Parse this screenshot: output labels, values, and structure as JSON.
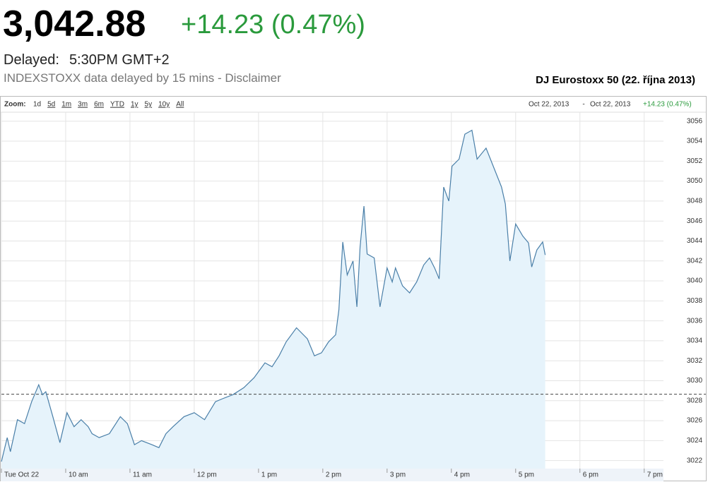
{
  "header": {
    "price": "3,042.88",
    "change": "+14.23 (0.47%)",
    "delayed_label": "Delayed:",
    "delayed_time": "5:30PM GMT+2",
    "disclaimer": "INDEXSTOXX data delayed by 15 mins - Disclaimer"
  },
  "zoom": {
    "label": "Zoom:",
    "ranges": [
      "1d",
      "5d",
      "1m",
      "3m",
      "6m",
      "YTD",
      "1y",
      "5y",
      "10y",
      "All"
    ],
    "from": "Oct 22, 2013",
    "separator": "-",
    "to": "Oct 22, 2013",
    "change": "+14.23 (0.47%)"
  },
  "chart_data": {
    "type": "area",
    "title": "DJ Eurostoxx 50 (22. října 2013)",
    "color": "#4a7fa8",
    "fill": "#e6f3fb",
    "x": [
      9.0,
      9.09,
      9.14,
      9.25,
      9.36,
      9.47,
      9.58,
      9.64,
      9.69,
      9.8,
      9.91,
      10.02,
      10.13,
      10.24,
      10.35,
      10.41,
      10.52,
      10.68,
      10.85,
      10.96,
      11.07,
      11.18,
      11.34,
      11.45,
      11.56,
      11.67,
      11.84,
      12.0,
      12.16,
      12.33,
      12.44,
      12.6,
      12.77,
      12.93,
      13.1,
      13.21,
      13.32,
      13.43,
      13.59,
      13.76,
      13.87,
      13.98,
      14.09,
      14.2,
      14.25,
      14.31,
      14.38,
      14.47,
      14.53,
      14.58,
      14.64,
      14.69,
      14.8,
      14.89,
      15.0,
      15.08,
      15.13,
      15.24,
      15.35,
      15.46,
      15.57,
      15.66,
      15.74,
      15.81,
      15.88,
      15.96,
      16.01,
      16.12,
      16.21,
      16.32,
      16.4,
      16.54,
      16.67,
      16.78,
      16.84,
      16.91,
      17.0,
      17.11,
      17.2,
      17.25,
      17.33,
      17.42,
      17.46
    ],
    "values": [
      3021.9,
      3024.3,
      3022.9,
      3026.1,
      3025.7,
      3027.9,
      3029.6,
      3028.6,
      3028.9,
      3026.4,
      3023.8,
      3026.8,
      3025.4,
      3026.1,
      3025.4,
      3024.7,
      3024.3,
      3024.7,
      3026.4,
      3025.7,
      3023.6,
      3024.0,
      3023.6,
      3023.3,
      3024.7,
      3025.4,
      3026.4,
      3026.8,
      3026.1,
      3027.9,
      3028.2,
      3028.6,
      3029.3,
      3030.3,
      3031.8,
      3031.4,
      3032.5,
      3033.9,
      3035.3,
      3034.2,
      3032.5,
      3032.8,
      3033.9,
      3034.6,
      3037.1,
      3043.9,
      3040.6,
      3042.0,
      3037.4,
      3043.4,
      3047.5,
      3042.7,
      3042.3,
      3037.4,
      3041.3,
      3039.9,
      3041.3,
      3039.5,
      3038.8,
      3039.9,
      3041.6,
      3042.3,
      3041.3,
      3040.2,
      3049.4,
      3048.0,
      3051.5,
      3052.2,
      3054.7,
      3055.1,
      3052.2,
      3053.3,
      3051.2,
      3049.4,
      3047.7,
      3042.0,
      3045.7,
      3044.5,
      3043.8,
      3041.4,
      3043.1,
      3043.9,
      3042.6
    ],
    "reference_line": 3028.65,
    "xlim": [
      9,
      19.3
    ],
    "ylim": [
      3021.2,
      3056.9
    ],
    "xticks": [
      {
        "value": 9,
        "label": "Tue Oct 22"
      },
      {
        "value": 10,
        "label": "10 am"
      },
      {
        "value": 11,
        "label": "11 am"
      },
      {
        "value": 12,
        "label": "12 pm"
      },
      {
        "value": 13,
        "label": "1 pm"
      },
      {
        "value": 14,
        "label": "2 pm"
      },
      {
        "value": 15,
        "label": "3 pm"
      },
      {
        "value": 16,
        "label": "4 pm"
      },
      {
        "value": 17,
        "label": "5 pm"
      },
      {
        "value": 18,
        "label": "6 pm"
      },
      {
        "value": 19,
        "label": "7 pm"
      }
    ],
    "yticks": [
      3022,
      3024,
      3026,
      3028,
      3030,
      3032,
      3034,
      3036,
      3038,
      3040,
      3042,
      3044,
      3046,
      3048,
      3050,
      3052,
      3054,
      3056
    ],
    "grid": true
  }
}
